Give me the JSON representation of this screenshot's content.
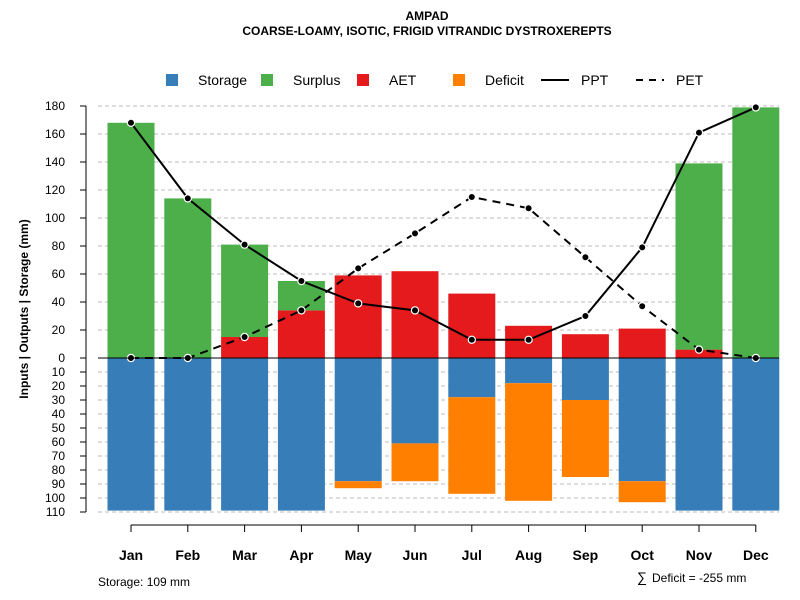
{
  "chart_data": {
    "type": "bar",
    "title": "AMPAD",
    "subtitle": "COARSE-LOAMY, ISOTIC, FRIGID VITRANDIC DYSTROXEREPTS",
    "ylabel": "Inputs | Outputs | Storage    (mm)",
    "categories": [
      "Jan",
      "Feb",
      "Mar",
      "Apr",
      "May",
      "Jun",
      "Jul",
      "Aug",
      "Sep",
      "Oct",
      "Nov",
      "Dec"
    ],
    "y_upper_lim": [
      0,
      180
    ],
    "y_lower_lim": [
      0,
      110
    ],
    "y_upper_ticks": [
      "0",
      "20",
      "40",
      "60",
      "80",
      "100",
      "120",
      "140",
      "160",
      "180"
    ],
    "y_lower_ticks": [
      "10",
      "20",
      "30",
      "40",
      "50",
      "60",
      "70",
      "80",
      "90",
      "100",
      "110"
    ],
    "series": [
      {
        "name": "Storage",
        "color": "#377EB8",
        "values": [
          109,
          109,
          109,
          109,
          88,
          61,
          28,
          18,
          30,
          88,
          109,
          109
        ]
      },
      {
        "name": "Surplus",
        "color": "#4DAF4A",
        "values": [
          168,
          114,
          66,
          21,
          0,
          0,
          0,
          0,
          0,
          0,
          133,
          179
        ]
      },
      {
        "name": "AET",
        "color": "#E41A1C",
        "values": [
          0,
          0,
          15,
          34,
          59,
          62,
          46,
          23,
          17,
          21,
          6,
          0
        ]
      },
      {
        "name": "Deficit",
        "color": "#FF7F00",
        "values": [
          0,
          0,
          0,
          0,
          5,
          27,
          69,
          84,
          55,
          15,
          0,
          0
        ]
      },
      {
        "name": "PPT",
        "color": "#000000",
        "style": "solid",
        "values": [
          168,
          114,
          81,
          55,
          39,
          34,
          13,
          13,
          30,
          79,
          161,
          179
        ]
      },
      {
        "name": "PET",
        "color": "#000000",
        "style": "dashed",
        "values": [
          0,
          0,
          15,
          34,
          64,
          89,
          115,
          107,
          72,
          37,
          6,
          0
        ]
      }
    ],
    "legend": [
      "Storage",
      "Surplus",
      "AET",
      "Deficit",
      "PPT",
      "PET"
    ],
    "legend_position": "top",
    "grid": true,
    "notes": {
      "storage": "Storage: 109 mm",
      "deficit_symbol": "∑",
      "deficit": "Deficit = -255 mm"
    }
  }
}
